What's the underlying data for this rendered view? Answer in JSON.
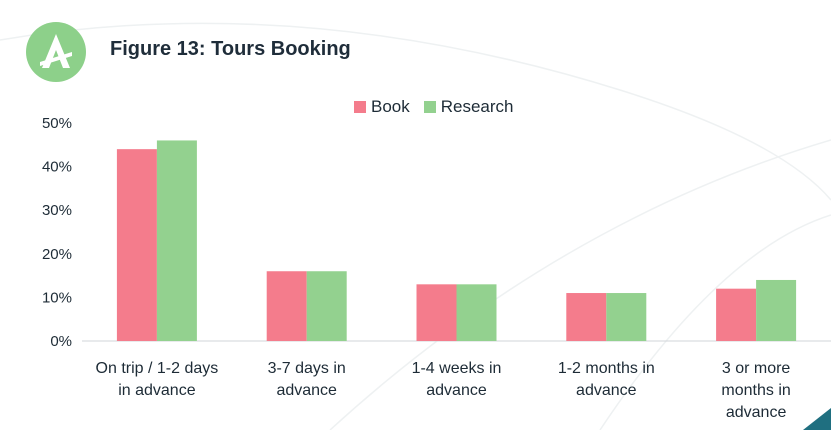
{
  "header": {
    "figure_title": "Figure 13: Tours Booking",
    "logo_icon": "compass-a-logo-icon",
    "logo_color": "#8dd08a"
  },
  "colors": {
    "book": "#f47c8c",
    "research": "#93d18f",
    "axis": "#d0d4d8",
    "corner": "#1f6f80"
  },
  "chart_data": {
    "type": "bar",
    "title": "Figure 13: Tours Booking",
    "xlabel": "",
    "ylabel": "",
    "categories": [
      [
        "On trip / 1-2 days",
        "in advance"
      ],
      [
        "3-7 days in",
        "advance"
      ],
      [
        "1-4 weeks in",
        "advance"
      ],
      [
        "1-2 months in",
        "advance"
      ],
      [
        "3 or more",
        "months in",
        "advance"
      ]
    ],
    "series": [
      {
        "name": "Book",
        "values": [
          44,
          16,
          13,
          11,
          12
        ]
      },
      {
        "name": "Research",
        "values": [
          46,
          16,
          13,
          11,
          14
        ]
      }
    ],
    "ylim": [
      0,
      50
    ],
    "yticks": [
      "0%",
      "10%",
      "20%",
      "30%",
      "40%",
      "50%"
    ],
    "grid": false,
    "legend_position": "top-center"
  }
}
